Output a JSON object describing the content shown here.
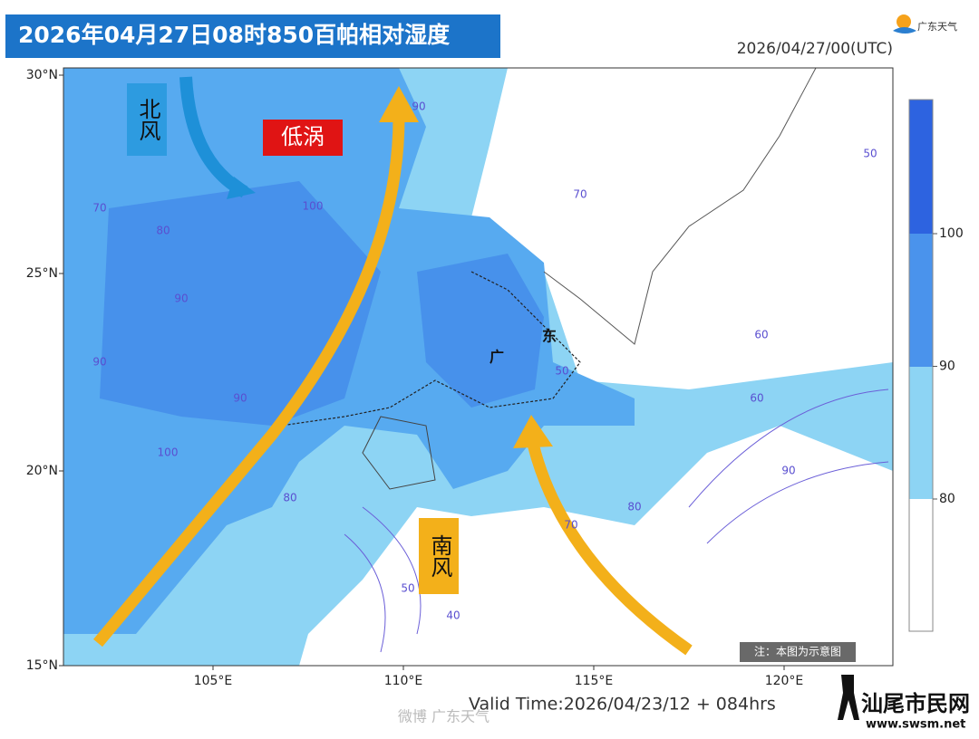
{
  "header": {
    "title": "2026年04月27日08时850百帕相对湿度",
    "init_time": "2026/04/27/00(UTC)",
    "logo": "广东天气"
  },
  "map": {
    "lat_labels": [
      "30°N",
      "25°N",
      "20°N",
      "15°N"
    ],
    "lon_labels": [
      "105°E",
      "110°E",
      "115°E",
      "120°E"
    ],
    "annotations": {
      "north_wind": "北风",
      "low_vortex": "低涡",
      "south_wind": "南风",
      "guang": "广",
      "dong": "东"
    },
    "contour_labels": [
      "90",
      "100",
      "90",
      "80",
      "70",
      "90",
      "100",
      "90",
      "80",
      "70",
      "50",
      "60",
      "50",
      "70",
      "60",
      "80",
      "90",
      "50",
      "40"
    ],
    "note": "注：本图为示意图"
  },
  "colorbar": {
    "ticks": [
      100,
      90,
      80
    ]
  },
  "footer": {
    "valid_time": "Valid Time:2026/04/23/12 + 084hrs",
    "weibo": "微博 广东天气",
    "site_name": "汕尾市民网",
    "site_url": "www.swsm.net"
  }
}
